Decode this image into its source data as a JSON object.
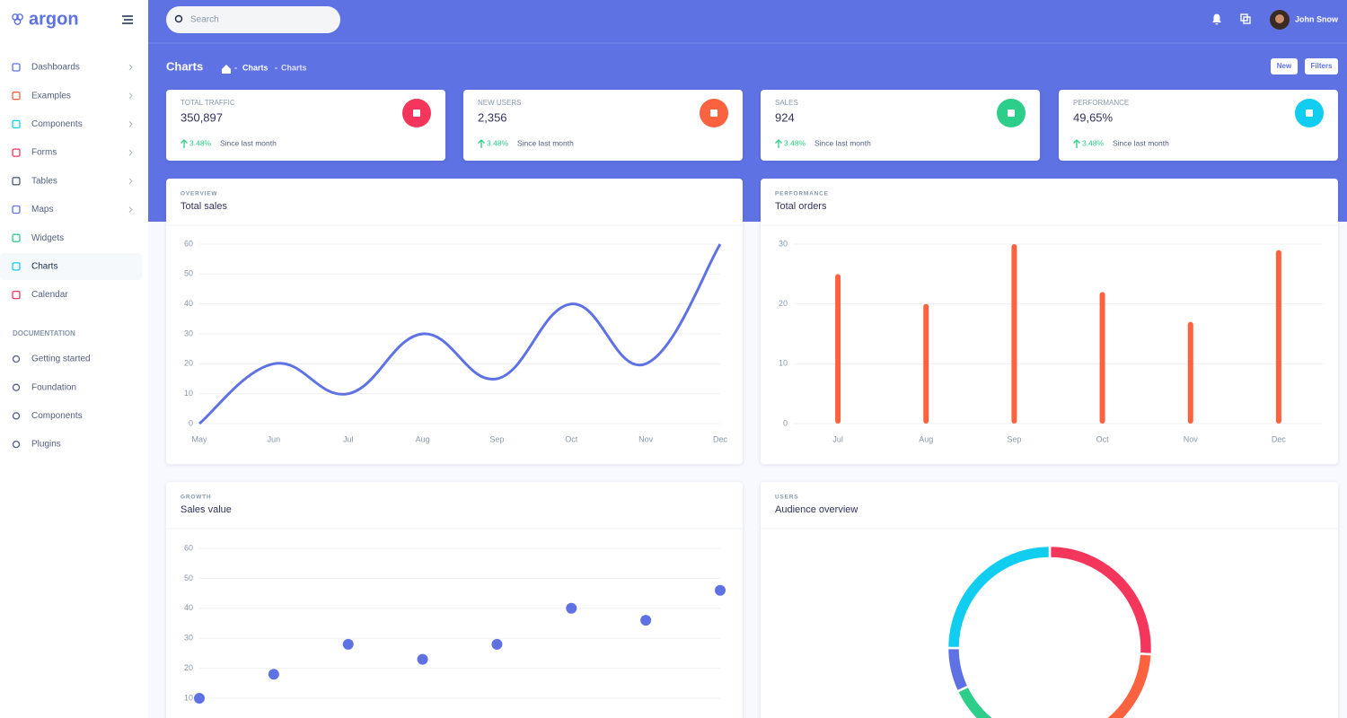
{
  "sidebar": {
    "logo": "argon",
    "nav": [
      "Dashboards",
      "Examples",
      "Components",
      "Forms",
      "Tables",
      "Maps",
      "Widgets",
      "Charts",
      "Calendar"
    ],
    "section_title": "DOCUMENTATION",
    "docs": [
      "Getting started",
      "Foundation",
      "Components",
      "Plugins"
    ]
  },
  "topbar": {
    "search_placeholder": "Search",
    "user": "John Snow"
  },
  "header": {
    "title": "Charts",
    "breadcrumb": [
      "Charts",
      "Charts"
    ],
    "buttons": [
      "New",
      "Filters"
    ]
  },
  "stats": [
    {
      "label": "TOTAL TRAFFIC",
      "value": "350,897",
      "change": "3.48%",
      "since": "Since last month"
    },
    {
      "label": "NEW USERS",
      "value": "2,356",
      "change": "3.48%",
      "since": "Since last month"
    },
    {
      "label": "SALES",
      "value": "924",
      "change": "3.48%",
      "since": "Since last month"
    },
    {
      "label": "PERFORMANCE",
      "value": "49,65%",
      "change": "3.48%",
      "since": "Since last month"
    }
  ],
  "chart_data": [
    {
      "type": "line",
      "subtitle": "OVERVIEW",
      "title": "Total sales",
      "color": "#5e72e4",
      "categories": [
        "May",
        "Jun",
        "Jul",
        "Aug",
        "Sep",
        "Oct",
        "Nov",
        "Dec"
      ],
      "values": [
        0,
        20,
        10,
        30,
        15,
        40,
        20,
        60
      ],
      "ylim": [
        0,
        60
      ],
      "yticks": [
        0,
        10,
        20,
        30,
        40,
        50,
        60
      ],
      "grid": true
    },
    {
      "type": "bar",
      "subtitle": "PERFORMANCE",
      "title": "Total orders",
      "color": "#fb6340",
      "categories": [
        "Jul",
        "Aug",
        "Sep",
        "Oct",
        "Nov",
        "Dec"
      ],
      "values": [
        25,
        20,
        30,
        22,
        17,
        29
      ],
      "ylim": [
        0,
        30
      ],
      "yticks": [
        0,
        10,
        20,
        30
      ],
      "grid": true
    },
    {
      "type": "scatter",
      "subtitle": "GROWTH",
      "title": "Sales value",
      "color": "#5e72e4",
      "values": [
        10,
        18,
        28,
        23,
        28,
        40,
        36,
        46
      ],
      "ylim": [
        10,
        60
      ],
      "yticks": [
        10,
        20,
        30,
        40,
        50,
        60
      ],
      "grid": true
    },
    {
      "type": "pie",
      "subtitle": "USERS",
      "title": "Audience overview",
      "values": [
        26,
        21,
        21,
        7,
        25
      ],
      "colors": [
        "#f5365c",
        "#fb6340",
        "#2dce89",
        "#5e72e4",
        "#11cdef"
      ]
    }
  ]
}
